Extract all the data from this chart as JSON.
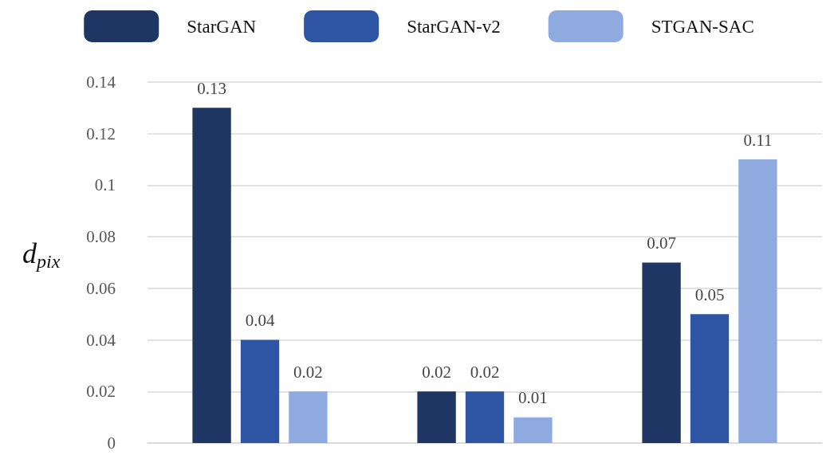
{
  "chart_data": {
    "type": "bar",
    "ylabel": "d$_{pix}$",
    "categories": [
      null,
      null,
      null
    ],
    "series": [
      {
        "name": "StarGAN",
        "color": "#1f3564",
        "values": [
          0.13,
          0.02,
          0.07
        ]
      },
      {
        "name": "StarGAN-v2",
        "color": "#2e54a4",
        "values": [
          0.04,
          0.02,
          0.05
        ]
      },
      {
        "name": "STGAN-SAC",
        "color": "#8eaadf",
        "values": [
          0.02,
          0.01,
          0.11
        ]
      }
    ],
    "ylim": [
      0,
      0.14
    ],
    "yticks": [
      0,
      0.02,
      0.04,
      0.06,
      0.08,
      0.1,
      0.12,
      0.14
    ],
    "grid": "y",
    "legend": "top",
    "data_labels": true
  }
}
